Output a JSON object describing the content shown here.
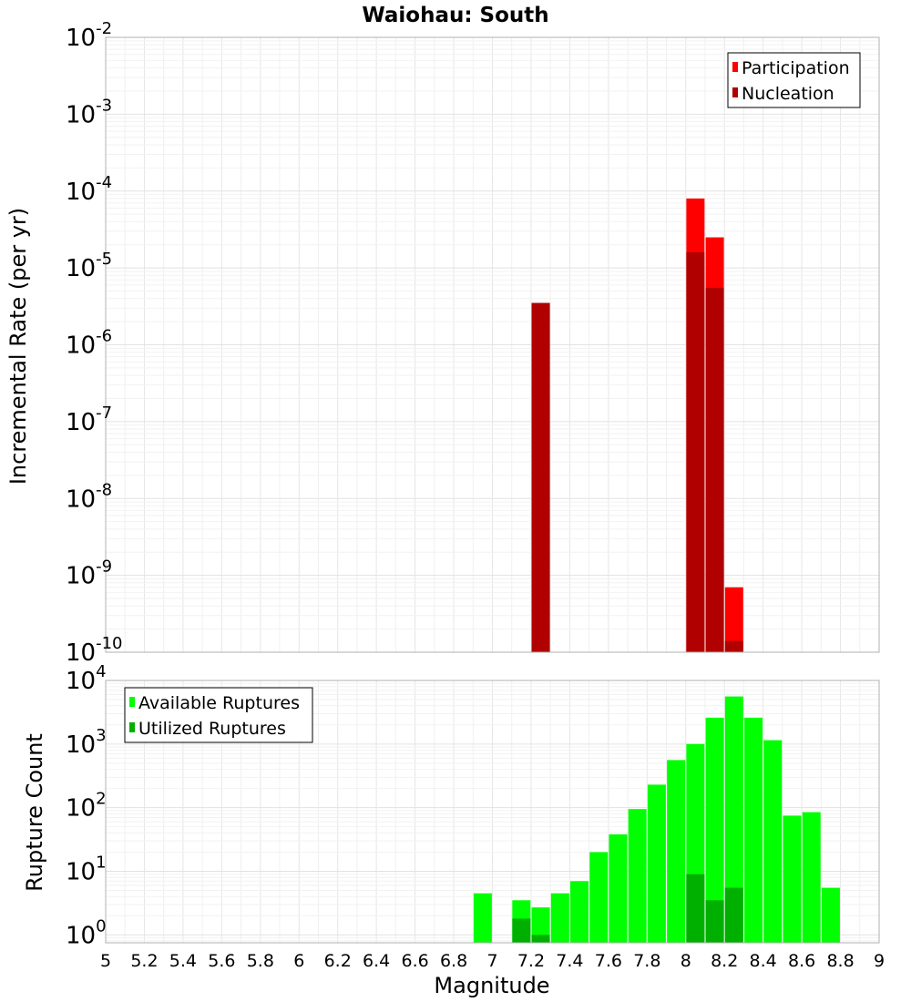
{
  "chart_data": [
    {
      "type": "bar",
      "title": "Waiohau: South",
      "xlabel": "Magnitude",
      "ylabel": "Incremental Rate (per yr)",
      "xlim": [
        5,
        9
      ],
      "ylim": [
        1e-10,
        0.01
      ],
      "y_scale": "log",
      "y_ticks": [
        {
          "base": "10",
          "exp": "-10"
        },
        {
          "base": "10",
          "exp": "-9"
        },
        {
          "base": "10",
          "exp": "-8"
        },
        {
          "base": "10",
          "exp": "-7"
        },
        {
          "base": "10",
          "exp": "-6"
        },
        {
          "base": "10",
          "exp": "-5"
        },
        {
          "base": "10",
          "exp": "-4"
        },
        {
          "base": "10",
          "exp": "-3"
        },
        {
          "base": "10",
          "exp": "-2"
        }
      ],
      "grid": true,
      "legend_position": "top-right",
      "series": [
        {
          "name": "Participation",
          "color": "#ff0000",
          "points": [
            {
              "x": 7.25,
              "y": 3.5e-06
            },
            {
              "x": 8.05,
              "y": 8e-05
            },
            {
              "x": 8.15,
              "y": 2.5e-05
            },
            {
              "x": 8.25,
              "y": 7e-10
            }
          ]
        },
        {
          "name": "Nucleation",
          "color": "#b00000",
          "points": [
            {
              "x": 7.25,
              "y": 3.5e-06
            },
            {
              "x": 8.05,
              "y": 1.6e-05
            },
            {
              "x": 8.15,
              "y": 5.5e-06
            },
            {
              "x": 8.25,
              "y": 1.4e-10
            }
          ]
        }
      ]
    },
    {
      "type": "bar",
      "xlabel": "Magnitude",
      "ylabel": "Rupture Count",
      "xlim": [
        5,
        9
      ],
      "ylim": [
        0.75,
        10000
      ],
      "y_scale": "log",
      "y_ticks": [
        {
          "base": "10",
          "exp": "0",
          "value": 1
        },
        {
          "base": "10",
          "exp": "1",
          "value": 10
        },
        {
          "base": "10",
          "exp": "2",
          "value": 100
        },
        {
          "base": "10",
          "exp": "3",
          "value": 1000
        },
        {
          "base": "10",
          "exp": "4",
          "value": 10000
        }
      ],
      "x_ticks": [
        "5",
        "5.2",
        "5.4",
        "5.6",
        "5.8",
        "6",
        "6.2",
        "6.4",
        "6.6",
        "6.8",
        "7",
        "7.2",
        "7.4",
        "7.6",
        "7.8",
        "8",
        "8.2",
        "8.4",
        "8.6",
        "8.8",
        "9"
      ],
      "grid": true,
      "legend_position": "top-left",
      "series": [
        {
          "name": "Available Ruptures",
          "color": "#00ff00",
          "points": [
            {
              "x": 6.95,
              "y": 4.5
            },
            {
              "x": 7.15,
              "y": 3.5
            },
            {
              "x": 7.25,
              "y": 2.7
            },
            {
              "x": 7.35,
              "y": 4.5
            },
            {
              "x": 7.45,
              "y": 7
            },
            {
              "x": 7.55,
              "y": 20
            },
            {
              "x": 7.65,
              "y": 38
            },
            {
              "x": 7.75,
              "y": 95
            },
            {
              "x": 7.85,
              "y": 230
            },
            {
              "x": 7.95,
              "y": 560
            },
            {
              "x": 8.05,
              "y": 1000
            },
            {
              "x": 8.15,
              "y": 2600
            },
            {
              "x": 8.25,
              "y": 5600
            },
            {
              "x": 8.35,
              "y": 2600
            },
            {
              "x": 8.45,
              "y": 1150
            },
            {
              "x": 8.55,
              "y": 75
            },
            {
              "x": 8.65,
              "y": 85
            },
            {
              "x": 8.75,
              "y": 5.5
            }
          ]
        },
        {
          "name": "Utilized Ruptures",
          "color": "#00b000",
          "points": [
            {
              "x": 7.15,
              "y": 1.8
            },
            {
              "x": 7.25,
              "y": 1
            },
            {
              "x": 8.05,
              "y": 9
            },
            {
              "x": 8.15,
              "y": 3.5
            },
            {
              "x": 8.25,
              "y": 5.5
            }
          ]
        }
      ]
    }
  ]
}
